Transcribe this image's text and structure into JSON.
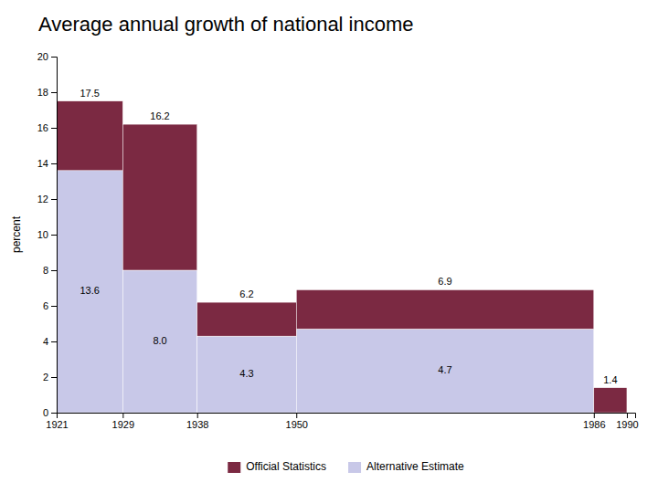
{
  "chart_data": {
    "type": "bar",
    "stacked": true,
    "title": "Average annual growth of national income",
    "y_label": "percent",
    "bins": [
      1921,
      1929,
      1938,
      1950,
      1986,
      1990
    ],
    "series": [
      {
        "name": "Alternative Estimate",
        "color": "#c8c8e8",
        "values": [
          13.6,
          8.0,
          4.3,
          4.7,
          0.0
        ],
        "value_labels": [
          "13.6",
          "8.0",
          "4.3",
          "4.7",
          null
        ]
      },
      {
        "name": "Official Statistics",
        "color": "#7b2942",
        "values": [
          3.9,
          8.2,
          1.9,
          2.2,
          1.4
        ]
      }
    ],
    "totals": [
      17.5,
      16.2,
      6.2,
      6.9,
      1.4
    ],
    "data_labels": true,
    "xlim": [
      1921,
      1991
    ],
    "xticks": [
      1921,
      1929,
      1938,
      1950,
      1986,
      1990
    ],
    "ylim": [
      0,
      20
    ],
    "yticks": [
      0,
      2,
      4,
      6,
      8,
      10,
      12,
      14,
      16,
      18,
      20
    ],
    "grid": false,
    "legend": "bottom"
  }
}
